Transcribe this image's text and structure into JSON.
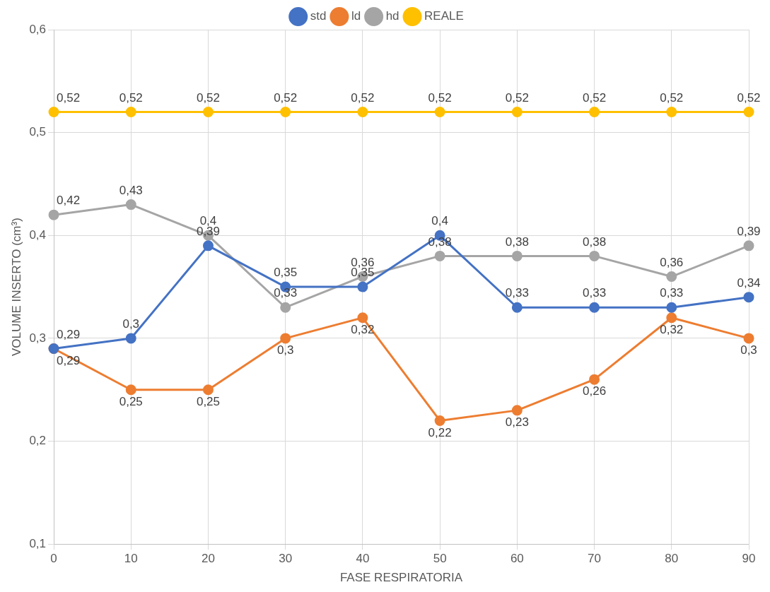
{
  "chart_data": {
    "type": "line",
    "xlabel": "FASE RESPIRATORIA",
    "ylabel": "VOLUME INSERTO (cm³)",
    "categories": [
      "0",
      "10",
      "20",
      "30",
      "40",
      "50",
      "60",
      "70",
      "80",
      "90"
    ],
    "ylim": [
      0.1,
      0.6
    ],
    "yticks": [
      {
        "value": 0.1,
        "label": "0,1"
      },
      {
        "value": 0.2,
        "label": "0,2"
      },
      {
        "value": 0.3,
        "label": "0,3"
      },
      {
        "value": 0.4,
        "label": "0,4"
      },
      {
        "value": 0.5,
        "label": "0,5"
      },
      {
        "value": 0.6,
        "label": "0,6"
      }
    ],
    "grid": true,
    "legend": "top",
    "marker": "circle",
    "line_style": "solid",
    "series": [
      {
        "name": "std",
        "color": "#4472c4",
        "values": [
          0.29,
          0.3,
          0.39,
          0.35,
          0.35,
          0.4,
          0.33,
          0.33,
          0.33,
          0.34
        ],
        "value_labels": [
          "0,29",
          "0,3",
          "0,39",
          "0,35",
          "0,35",
          "0,4",
          "0,33",
          "0,33",
          "0,33",
          "0,34"
        ]
      },
      {
        "name": "ld",
        "color": "#ed7d31",
        "values": [
          0.29,
          0.25,
          0.25,
          0.3,
          0.32,
          0.22,
          0.23,
          0.26,
          0.32,
          0.3
        ],
        "value_labels": [
          "0,29",
          "0,25",
          "0,25",
          "0,3",
          "0,32",
          "0,22",
          "0,23",
          "0,26",
          "0,32",
          "0,3"
        ]
      },
      {
        "name": "hd",
        "color": "#a5a5a5",
        "values": [
          0.42,
          0.43,
          0.4,
          0.33,
          0.36,
          0.38,
          0.38,
          0.38,
          0.36,
          0.39
        ],
        "value_labels": [
          "0,42",
          "0,43",
          "0,4",
          "0,33",
          "0,36",
          "0,38",
          "0,38",
          "0,38",
          "0,36",
          "0,39"
        ]
      },
      {
        "name": "REALE",
        "color": "#ffc000",
        "values": [
          0.52,
          0.52,
          0.52,
          0.52,
          0.52,
          0.52,
          0.52,
          0.52,
          0.52,
          0.52
        ],
        "value_labels": [
          "0,52",
          "0,52",
          "0,52",
          "0,52",
          "0,52",
          "0,52",
          "0,52",
          "0,52",
          "0,52",
          "0,52"
        ]
      }
    ]
  }
}
